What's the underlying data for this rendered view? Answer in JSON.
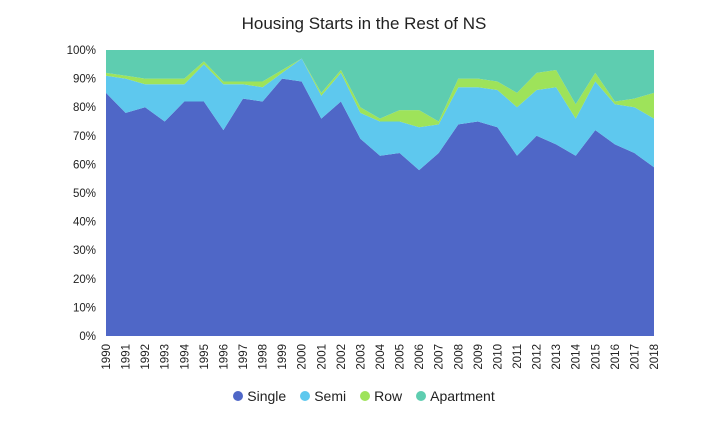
{
  "chart_data": {
    "type": "area",
    "title": "Housing Starts in the Rest of NS",
    "xlabel": "",
    "ylabel": "",
    "stacked": true,
    "ylim": [
      0,
      100
    ],
    "ytick_labels": [
      "0%",
      "10%",
      "20%",
      "30%",
      "40%",
      "50%",
      "60%",
      "70%",
      "80%",
      "90%",
      "100%"
    ],
    "x": [
      "1990",
      "1991",
      "1992",
      "1993",
      "1994",
      "1995",
      "1996",
      "1997",
      "1998",
      "1999",
      "2000",
      "2001",
      "2002",
      "2003",
      "2004",
      "2005",
      "2006",
      "2007",
      "2008",
      "2009",
      "2010",
      "2011",
      "2012",
      "2013",
      "2014",
      "2015",
      "2016",
      "2017",
      "2018"
    ],
    "series": [
      {
        "name": "Single",
        "color": "#4f67c7",
        "values": [
          85,
          78,
          80,
          75,
          82,
          82,
          72,
          83,
          82,
          90,
          89,
          76,
          82,
          69,
          63,
          64,
          58,
          64,
          74,
          75,
          73,
          63,
          70,
          67,
          63,
          72,
          67,
          64,
          59
        ]
      },
      {
        "name": "Semi",
        "color": "#5ec8ee",
        "values": [
          6,
          12,
          8,
          13,
          6,
          13,
          16,
          5,
          5,
          2,
          8,
          8,
          10,
          9,
          12,
          11,
          15,
          10,
          13,
          12,
          13,
          17,
          16,
          20,
          13,
          17,
          14,
          16,
          17
        ]
      },
      {
        "name": "Row",
        "color": "#9ee35a",
        "values": [
          1,
          1,
          2,
          2,
          2,
          1,
          1,
          1,
          2,
          1,
          0,
          1,
          1,
          2,
          1,
          4,
          6,
          1,
          3,
          3,
          3,
          5,
          6,
          6,
          5,
          3,
          1,
          3,
          9
        ]
      },
      {
        "name": "Apartment",
        "color": "#5ecdb0",
        "values": [
          8,
          9,
          10,
          10,
          10,
          4,
          11,
          11,
          11,
          7,
          3,
          15,
          7,
          20,
          24,
          21,
          21,
          25,
          10,
          10,
          11,
          15,
          8,
          7,
          19,
          8,
          18,
          17,
          15
        ]
      }
    ],
    "legend_position": "bottom",
    "grid": false
  }
}
